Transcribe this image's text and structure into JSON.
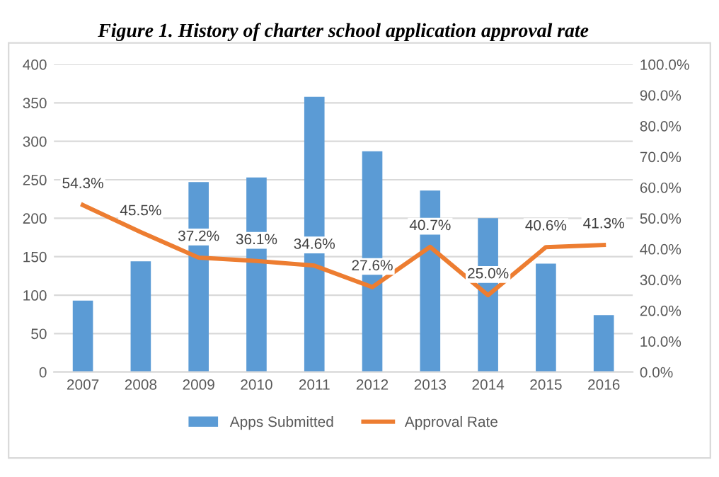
{
  "chart_data": {
    "type": "bar",
    "title": "Figure 1. History of charter school application approval rate",
    "categories": [
      "2007",
      "2008",
      "2009",
      "2010",
      "2011",
      "2012",
      "2013",
      "2014",
      "2015",
      "2016"
    ],
    "series": [
      {
        "name": "Apps Submitted",
        "color": "#5b9bd5",
        "values": [
          93,
          144,
          247,
          253,
          358,
          287,
          236,
          200,
          141,
          74
        ]
      },
      {
        "name": "Approval Rate",
        "type": "line",
        "axis": "y2",
        "color": "#ed7d31",
        "values": [
          54.3,
          45.5,
          37.2,
          36.1,
          34.6,
          27.6,
          40.7,
          25.0,
          40.6,
          41.3
        ],
        "value_labels": [
          "54.3%",
          "45.5%",
          "37.2%",
          "36.1%",
          "34.6%",
          "27.6%",
          "40.7%",
          "25.0%",
          "40.6%",
          "41.3%"
        ]
      }
    ],
    "ylim": [
      0,
      400
    ],
    "yticks": [
      0,
      50,
      100,
      150,
      200,
      250,
      300,
      350,
      400
    ],
    "y2lim": [
      0,
      100
    ],
    "y2ticks": [
      {
        "value": 0,
        "label": "0.0%"
      },
      {
        "value": 10,
        "label": "10.0%"
      },
      {
        "value": 20,
        "label": "20.0%"
      },
      {
        "value": 30,
        "label": "30.0%"
      },
      {
        "value": 40,
        "label": "40.0%"
      },
      {
        "value": 50,
        "label": "50.0%"
      },
      {
        "value": 60,
        "label": "60.0%"
      },
      {
        "value": 70,
        "label": "70.0%"
      },
      {
        "value": 80,
        "label": "80.0%"
      },
      {
        "value": 90,
        "label": "90.0%"
      },
      {
        "value": 100,
        "label": "100.0%"
      }
    ],
    "grid": "y",
    "legend": "bottom",
    "marker": "none",
    "line_style": "solid"
  }
}
